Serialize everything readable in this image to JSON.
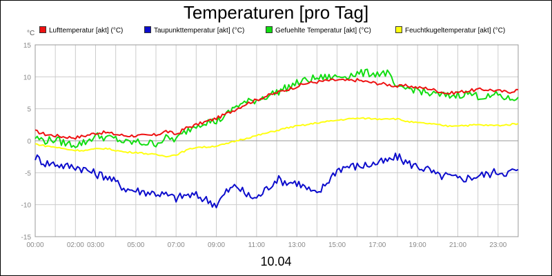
{
  "chart_data": {
    "type": "line",
    "title": "Temperaturen [pro Tag]",
    "date_label": "10.04",
    "unit": "°C",
    "xlabel": "",
    "ylabel": "",
    "ylim": [
      -15,
      15
    ],
    "y_ticks": [
      15,
      10,
      5,
      0,
      -5,
      -10,
      -15
    ],
    "x_ticks": [
      "00:00",
      "02:00",
      "03:00",
      "05:00",
      "07:00",
      "09:00",
      "11:00",
      "13:00",
      "15:00",
      "17:00",
      "19:00",
      "21:00",
      "23:00"
    ],
    "x_tick_hours": [
      0,
      2,
      3,
      5,
      7,
      9,
      11,
      13,
      15,
      17,
      19,
      21,
      23
    ],
    "xlim_hours": [
      0,
      24
    ],
    "grid": true,
    "legend_position": "top",
    "x_hours": [
      0,
      0.5,
      1,
      1.5,
      2,
      2.5,
      3,
      3.5,
      4,
      4.5,
      5,
      5.5,
      6,
      6.5,
      7,
      7.5,
      8,
      8.5,
      9,
      9.5,
      10,
      10.5,
      11,
      11.5,
      12,
      12.5,
      13,
      13.5,
      14,
      14.5,
      15,
      15.5,
      16,
      16.5,
      17,
      17.5,
      18,
      18.5,
      19,
      19.5,
      20,
      20.5,
      21,
      21.5,
      22,
      22.5,
      23,
      23.5,
      24
    ],
    "series": [
      {
        "name": "Lufttemperatur [akt] (°C)",
        "color": "#ee1111",
        "values": [
          1.5,
          1,
          0.8,
          0.6,
          0.5,
          0.8,
          1.2,
          1.3,
          1.0,
          0.8,
          0.8,
          0.8,
          0.9,
          1.5,
          1.0,
          2.0,
          2.5,
          3.0,
          3.5,
          4.2,
          5.0,
          5.8,
          6.4,
          7.0,
          7.5,
          8.0,
          8.5,
          9.0,
          9.2,
          9.4,
          9.5,
          9.4,
          9.5,
          9.2,
          9.0,
          8.8,
          8.5,
          8.6,
          8.3,
          8.2,
          7.8,
          7.4,
          7.6,
          7.8,
          8.0,
          8.0,
          7.8,
          7.6,
          8.0
        ]
      },
      {
        "name": "Taupunkttemperatur [akt] (°C)",
        "color": "#0b0bcc",
        "values": [
          -2.5,
          -3.5,
          -3.6,
          -4,
          -4,
          -4.5,
          -5.2,
          -5.5,
          -6.5,
          -7.5,
          -7.8,
          -8,
          -8.2,
          -8.5,
          -9.0,
          -8.5,
          -8.6,
          -9.2,
          -10.0,
          -8.0,
          -7.0,
          -8.5,
          -9.0,
          -7.5,
          -6.0,
          -6.5,
          -6.5,
          -7.5,
          -8.5,
          -6.5,
          -4.5,
          -4.0,
          -4.0,
          -3.8,
          -3.5,
          -3.2,
          -2.5,
          -3.5,
          -4.0,
          -4.5,
          -5.5,
          -5.5,
          -6.0,
          -5.8,
          -5.5,
          -5.2,
          -4.8,
          -5.0,
          -4.5
        ]
      },
      {
        "name": "Gefuehlte Temperatur [akt] (°C)",
        "color": "#11dd11",
        "values": [
          0.5,
          0,
          0.2,
          -0.4,
          -0.6,
          -0.2,
          0.8,
          0.5,
          0.3,
          -0.3,
          -0.2,
          -0.4,
          -0.4,
          0.4,
          0.2,
          1.5,
          2.5,
          3.0,
          3.0,
          4.0,
          5.5,
          6.0,
          6.4,
          7.0,
          7.6,
          8.3,
          9.0,
          9.5,
          9.8,
          9.9,
          10.0,
          10.2,
          10.5,
          10.6,
          10.5,
          10.6,
          8.0,
          8.2,
          8.0,
          7.4,
          7.2,
          7.0,
          7.2,
          7.4,
          7.0,
          6.8,
          7.2,
          6.5,
          6.8
        ]
      },
      {
        "name": "Feuchtkugeltemperatur [akt] (°C)",
        "color": "#ffff11",
        "values": [
          -0.5,
          -0.8,
          -1.0,
          -1.3,
          -1.5,
          -1.5,
          -1.3,
          -1.2,
          -1.5,
          -1.8,
          -1.8,
          -2.0,
          -2.2,
          -2.4,
          -2.2,
          -1.5,
          -1.0,
          -1.0,
          -0.8,
          -0.5,
          0,
          0.4,
          0.8,
          1.2,
          1.6,
          2.0,
          2.3,
          2.5,
          2.8,
          3.0,
          3.2,
          3.4,
          3.5,
          3.5,
          3.4,
          3.5,
          3.4,
          3.0,
          2.8,
          2.7,
          2.5,
          2.3,
          2.4,
          2.4,
          2.5,
          2.4,
          2.4,
          2.5,
          2.7
        ]
      }
    ]
  }
}
